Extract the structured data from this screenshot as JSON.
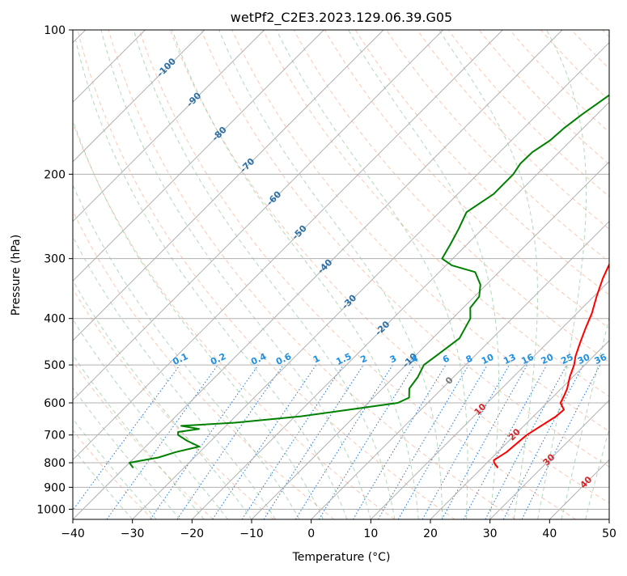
{
  "chart_data": {
    "type": "skew-t",
    "title": "wetPf2_C2E3.2023.129.06.39.G05",
    "xlabel": "Temperature (°C)",
    "ylabel": "Pressure (hPa)",
    "xlim": [
      -40,
      50
    ],
    "ylim": [
      1050,
      100
    ],
    "x_ticks": [
      -40,
      -30,
      -20,
      -10,
      0,
      10,
      20,
      30,
      40,
      50
    ],
    "x_tick_labels": [
      "−40",
      "−30",
      "−20",
      "−10",
      "0",
      "10",
      "20",
      "30",
      "40",
      "50"
    ],
    "y_ticks": [
      100,
      200,
      300,
      400,
      500,
      600,
      700,
      800,
      900,
      1000
    ],
    "y_tick_labels": [
      "100",
      "200",
      "300",
      "400",
      "500",
      "600",
      "700",
      "800",
      "900",
      "1000"
    ],
    "grid": true,
    "dry_adiabat_labels": [
      {
        "text": "-100",
        "temp_c": -100,
        "pressure_hpa": 120
      },
      {
        "text": "-90",
        "temp_c": -90,
        "pressure_hpa": 140
      },
      {
        "text": "-80",
        "temp_c": -80,
        "pressure_hpa": 165
      },
      {
        "text": "-70",
        "temp_c": -70,
        "pressure_hpa": 192
      },
      {
        "text": "-60",
        "temp_c": -60,
        "pressure_hpa": 225
      },
      {
        "text": "-50",
        "temp_c": -50,
        "pressure_hpa": 265
      },
      {
        "text": "-40",
        "temp_c": -40,
        "pressure_hpa": 312
      },
      {
        "text": "-30",
        "temp_c": -30,
        "pressure_hpa": 370
      },
      {
        "text": "-20",
        "temp_c": -20,
        "pressure_hpa": 420
      },
      {
        "text": "-10",
        "temp_c": -10,
        "pressure_hpa": 490
      }
    ],
    "moist_adiabat_labels": [
      {
        "text": "0",
        "temp_c": 0,
        "pressure_hpa": 540
      },
      {
        "text": "10",
        "temp_c": 10,
        "pressure_hpa": 620
      },
      {
        "text": "20",
        "temp_c": 20,
        "pressure_hpa": 700
      },
      {
        "text": "30",
        "temp_c": 30,
        "pressure_hpa": 790
      },
      {
        "text": "40",
        "temp_c": 40,
        "pressure_hpa": 880
      }
    ],
    "mixing_ratio_labels": [
      "0.1",
      "0.2",
      "0.4",
      "0.6",
      "1",
      "1.5",
      "2",
      "3",
      "4",
      "6",
      "8",
      "10",
      "13",
      "16",
      "20",
      "25",
      "30",
      "36"
    ],
    "mixing_ratio_values": [
      0.1,
      0.2,
      0.4,
      0.6,
      1,
      1.5,
      2,
      3,
      4,
      6,
      8,
      10,
      13,
      16,
      20,
      25,
      30,
      36
    ],
    "series": [
      {
        "name": "Temperature",
        "color": "#ff0000",
        "points": [
          [
            100,
            14.0
          ],
          [
            110,
            9.5
          ],
          [
            120,
            9.8
          ],
          [
            130,
            7.5
          ],
          [
            140,
            5.0
          ],
          [
            150,
            2.0
          ],
          [
            160,
            -0.5
          ],
          [
            170,
            -1.5
          ],
          [
            180,
            -0.5
          ],
          [
            200,
            0.3
          ],
          [
            220,
            2.0
          ],
          [
            250,
            4.2
          ],
          [
            280,
            5.5
          ],
          [
            300,
            6.7
          ],
          [
            330,
            8.5
          ],
          [
            360,
            10.5
          ],
          [
            390,
            12.5
          ],
          [
            420,
            14.0
          ],
          [
            450,
            15.5
          ],
          [
            480,
            17.0
          ],
          [
            500,
            18.2
          ],
          [
            530,
            19.5
          ],
          [
            560,
            21.0
          ],
          [
            580,
            21.7
          ],
          [
            600,
            22.3
          ],
          [
            620,
            24.0
          ],
          [
            640,
            23.8
          ],
          [
            700,
            22.0
          ],
          [
            760,
            21.5
          ],
          [
            790,
            20.7
          ],
          [
            800,
            21.2
          ],
          [
            820,
            22.7
          ]
        ]
      },
      {
        "name": "Dewpoint",
        "color": "#008000",
        "points": [
          [
            100,
            -15.5
          ],
          [
            110,
            -18.0
          ],
          [
            120,
            -19.5
          ],
          [
            130,
            -20.5
          ],
          [
            140,
            -21.5
          ],
          [
            150,
            -22.5
          ],
          [
            160,
            -23.2
          ],
          [
            170,
            -23.5
          ],
          [
            180,
            -24.5
          ],
          [
            190,
            -24.6
          ],
          [
            200,
            -24.0
          ],
          [
            220,
            -24.0
          ],
          [
            240,
            -25.5
          ],
          [
            260,
            -24.0
          ],
          [
            280,
            -22.8
          ],
          [
            300,
            -21.8
          ],
          [
            310,
            -19.0
          ],
          [
            320,
            -14.0
          ],
          [
            340,
            -11.0
          ],
          [
            360,
            -9.2
          ],
          [
            380,
            -8.8
          ],
          [
            400,
            -7.0
          ],
          [
            440,
            -5.5
          ],
          [
            480,
            -6.5
          ],
          [
            500,
            -7.0
          ],
          [
            530,
            -6.0
          ],
          [
            560,
            -5.5
          ],
          [
            585,
            -4.0
          ],
          [
            600,
            -5.0
          ],
          [
            620,
            -12.0
          ],
          [
            640,
            -19.0
          ],
          [
            660,
            -29.0
          ],
          [
            670,
            -37.5
          ],
          [
            680,
            -34.0
          ],
          [
            690,
            -37.0
          ],
          [
            700,
            -36.5
          ],
          [
            720,
            -34.0
          ],
          [
            740,
            -31.0
          ],
          [
            760,
            -34.0
          ],
          [
            780,
            -36.0
          ],
          [
            800,
            -40.0
          ],
          [
            820,
            -38.5
          ]
        ]
      }
    ]
  }
}
